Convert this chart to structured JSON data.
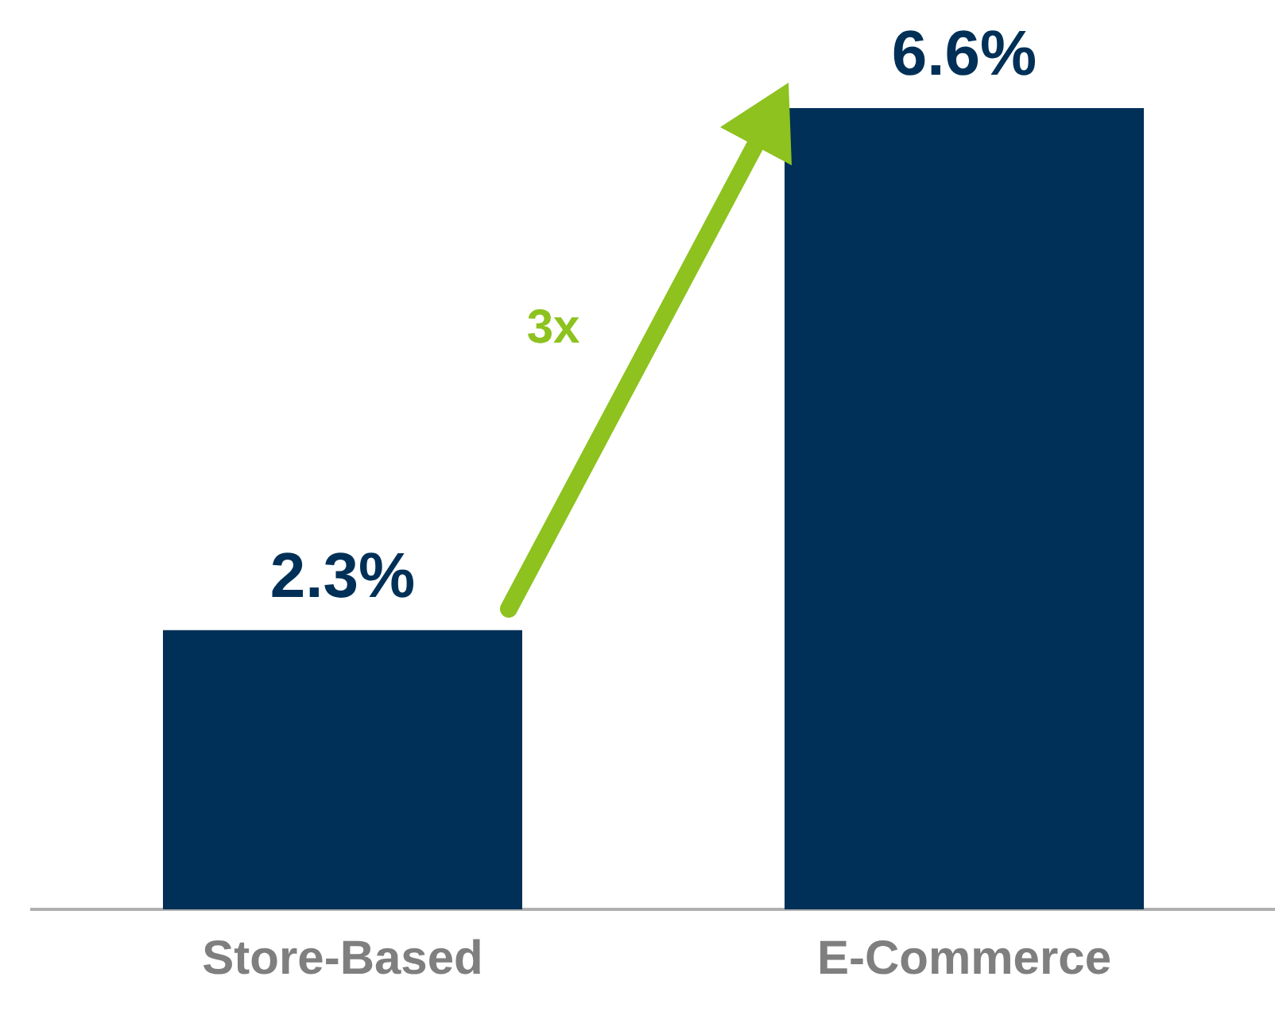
{
  "chart_data": {
    "type": "bar",
    "categories": [
      "Store-Based",
      "E-Commerce"
    ],
    "values": [
      2.3,
      6.6
    ],
    "color": "#003057",
    "data_labels": true,
    "value_labels": [
      "2.3%",
      "6.6%"
    ],
    "annotations": [
      "3x"
    ],
    "grid": false,
    "legend": false
  }
}
